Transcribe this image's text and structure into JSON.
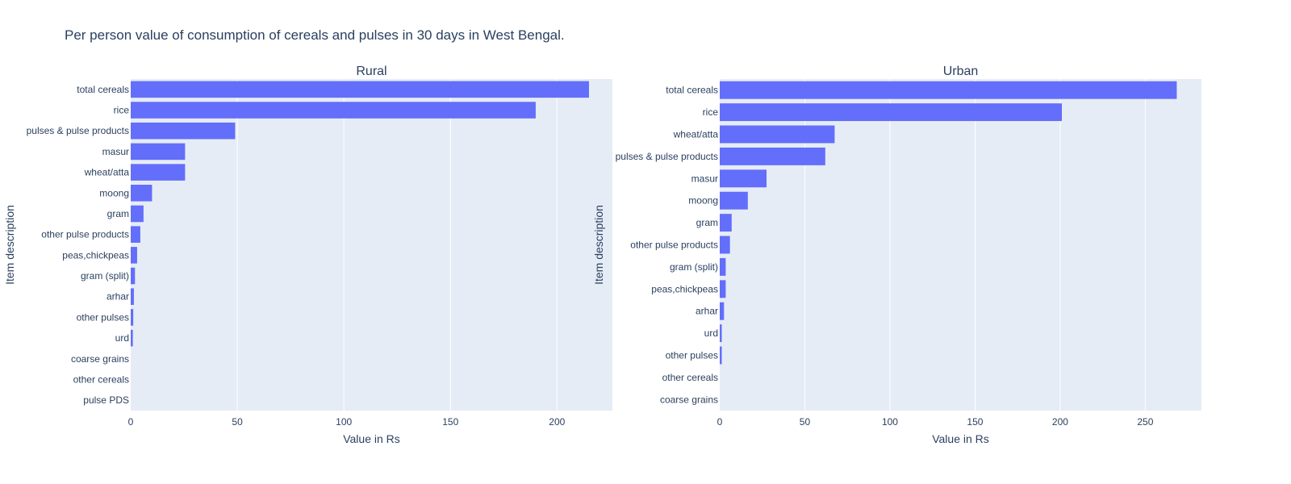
{
  "title": "Per person value of consumption of cereals and pulses in 30 days in West Bengal.",
  "colors": {
    "bar": "#636efa",
    "plot_bg": "#e5ecf6",
    "grid": "#ffffff",
    "text": "#2a3f5f"
  },
  "chart_data": [
    {
      "type": "bar",
      "orientation": "horizontal",
      "subtitle": "Rural",
      "xlabel": "Value in Rs",
      "ylabel": "Item description",
      "xlim": [
        0,
        226
      ],
      "xticks": [
        0,
        50,
        100,
        150,
        200
      ],
      "grid": true,
      "categories": [
        "total cereals",
        "rice",
        "pulses & pulse products",
        "masur",
        "wheat/atta",
        "moong",
        "gram",
        "other pulse products",
        "peas,chickpeas",
        "gram (split)",
        "arhar",
        "other pulses",
        "urd",
        "coarse grains",
        "other cereals",
        "pulse PDS"
      ],
      "values": [
        215,
        190,
        49,
        25.5,
        25.5,
        10,
        6,
        4.5,
        3,
        2,
        1.5,
        1.2,
        1,
        0,
        0,
        0
      ]
    },
    {
      "type": "bar",
      "orientation": "horizontal",
      "subtitle": "Urban",
      "xlabel": "Value in Rs",
      "ylabel": "Item description",
      "xlim": [
        0,
        283
      ],
      "xticks": [
        0,
        50,
        100,
        150,
        200,
        250
      ],
      "grid": true,
      "categories": [
        "total cereals",
        "rice",
        "wheat/atta",
        "pulses & pulse products",
        "masur",
        "moong",
        "gram",
        "other pulse products",
        "gram (split)",
        "peas,chickpeas",
        "arhar",
        "urd",
        "other pulses",
        "other cereals",
        "coarse grains"
      ],
      "values": [
        268.5,
        201,
        67.5,
        62,
        27.5,
        16.5,
        7,
        6,
        3.5,
        3.5,
        2.5,
        1.2,
        1.2,
        0,
        0
      ]
    }
  ]
}
